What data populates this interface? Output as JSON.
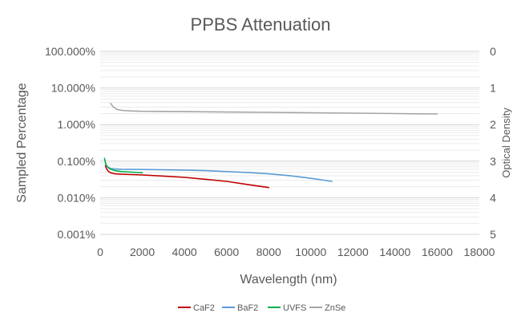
{
  "chart_data": {
    "type": "line",
    "title": "PPBS Attenuation",
    "xlabel": "Wavelength (nm)",
    "ylabel": "Sampled Percentage",
    "y2label": "Optical Density",
    "xlim": [
      0,
      18000
    ],
    "ylim": [
      0.001,
      100
    ],
    "y_scale": "log",
    "y2lim": [
      5,
      0
    ],
    "grid": true,
    "legend_position": "bottom",
    "x_ticks": [
      "0",
      "2000",
      "4000",
      "6000",
      "8000",
      "10000",
      "12000",
      "14000",
      "16000",
      "18000"
    ],
    "y_ticks": [
      "100.000%",
      "10.000%",
      "1.000%",
      "0.100%",
      "0.010%",
      "0.001%"
    ],
    "y2_ticks": [
      "0",
      "1",
      "2",
      "3",
      "4",
      "5"
    ],
    "series": [
      {
        "name": "CaF2",
        "color": "#c00000",
        "x": [
          250,
          300,
          400,
          500,
          700,
          1000,
          1500,
          2000,
          3000,
          4000,
          5000,
          6000,
          7000,
          8000
        ],
        "y": [
          0.075,
          0.062,
          0.052,
          0.048,
          0.045,
          0.044,
          0.043,
          0.042,
          0.039,
          0.036,
          0.032,
          0.028,
          0.023,
          0.019
        ]
      },
      {
        "name": "BaF2",
        "color": "#5b9bd5",
        "x": [
          250,
          300,
          400,
          500,
          700,
          1000,
          2000,
          3000,
          4000,
          5000,
          6000,
          7000,
          8000,
          9000,
          10000,
          11000
        ],
        "y": [
          0.085,
          0.075,
          0.067,
          0.063,
          0.061,
          0.06,
          0.059,
          0.058,
          0.057,
          0.055,
          0.052,
          0.049,
          0.045,
          0.04,
          0.034,
          0.028
        ]
      },
      {
        "name": "UVFS",
        "color": "#00b050",
        "x": [
          200,
          250,
          300,
          400,
          500,
          700,
          1000,
          1500,
          2000
        ],
        "y": [
          0.12,
          0.09,
          0.075,
          0.065,
          0.06,
          0.055,
          0.052,
          0.05,
          0.048
        ]
      },
      {
        "name": "ZnSe",
        "color": "#a5a5a5",
        "x": [
          500,
          600,
          700,
          800,
          1000,
          1500,
          2000,
          4000,
          6000,
          8000,
          10000,
          12000,
          14000,
          16000
        ],
        "y": [
          3.8,
          3.1,
          2.8,
          2.6,
          2.45,
          2.35,
          2.3,
          2.25,
          2.2,
          2.15,
          2.1,
          2.05,
          2.0,
          1.95
        ]
      }
    ]
  }
}
